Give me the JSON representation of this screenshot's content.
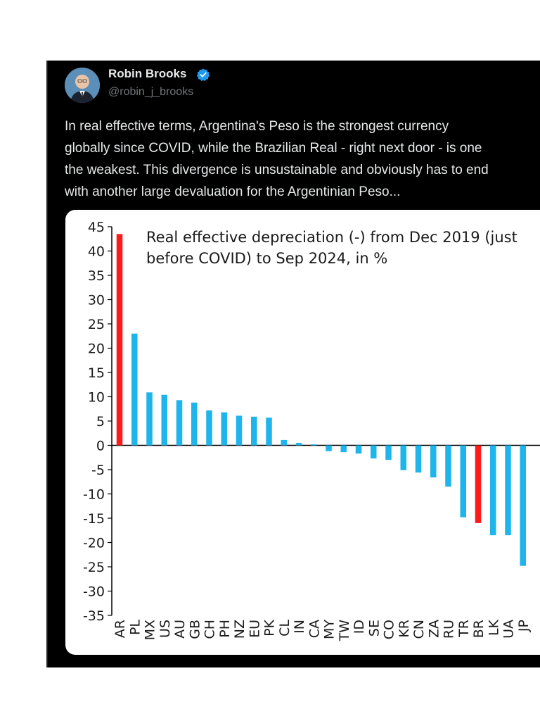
{
  "tweet": {
    "author": {
      "name": "Robin Brooks",
      "handle": "@robin_j_brooks",
      "verified": true,
      "avatar_icon": "profile-photo"
    },
    "text_lines": [
      "In real effective terms, Argentina's Peso is the strongest currency",
      "globally since COVID, while the Brazilian Real - right next door - is one",
      "the weakest. This divergence is unsustainable and obviously has to end",
      "with another large devaluation for the Argentinian Peso..."
    ]
  },
  "chart_data": {
    "type": "bar",
    "title_lines": [
      "Real effective depreciation (-) from Dec 2019 (just",
      "before COVID) to Sep 2024, in %"
    ],
    "xlabel": "",
    "ylabel": "",
    "ylim": [
      -35,
      45
    ],
    "yticks": [
      45,
      40,
      35,
      30,
      25,
      20,
      15,
      10,
      5,
      0,
      -5,
      -10,
      -15,
      -20,
      -25,
      -30,
      -35
    ],
    "categories": [
      "AR",
      "PL",
      "MX",
      "US",
      "AU",
      "GB",
      "CH",
      "PH",
      "NZ",
      "EU",
      "PK",
      "CL",
      "IN",
      "CA",
      "MY",
      "TW",
      "ID",
      "SE",
      "CO",
      "KR",
      "CN",
      "ZA",
      "RU",
      "TR",
      "BR",
      "LK",
      "UA",
      "JP"
    ],
    "values": [
      43.5,
      23.0,
      10.9,
      10.4,
      9.3,
      8.8,
      7.2,
      6.8,
      6.1,
      5.9,
      5.7,
      1.1,
      0.5,
      0.2,
      -1.2,
      -1.4,
      -1.7,
      -2.7,
      -3.0,
      -5.1,
      -5.6,
      -6.6,
      -8.5,
      -14.8,
      -16.0,
      -18.5,
      -18.5,
      -24.8
    ],
    "colors": {
      "default": "#1eb4ec",
      "highlight": "#ff1a1a",
      "highlighted_categories": [
        "AR",
        "BR"
      ]
    },
    "grid": false,
    "legend": "none"
  }
}
